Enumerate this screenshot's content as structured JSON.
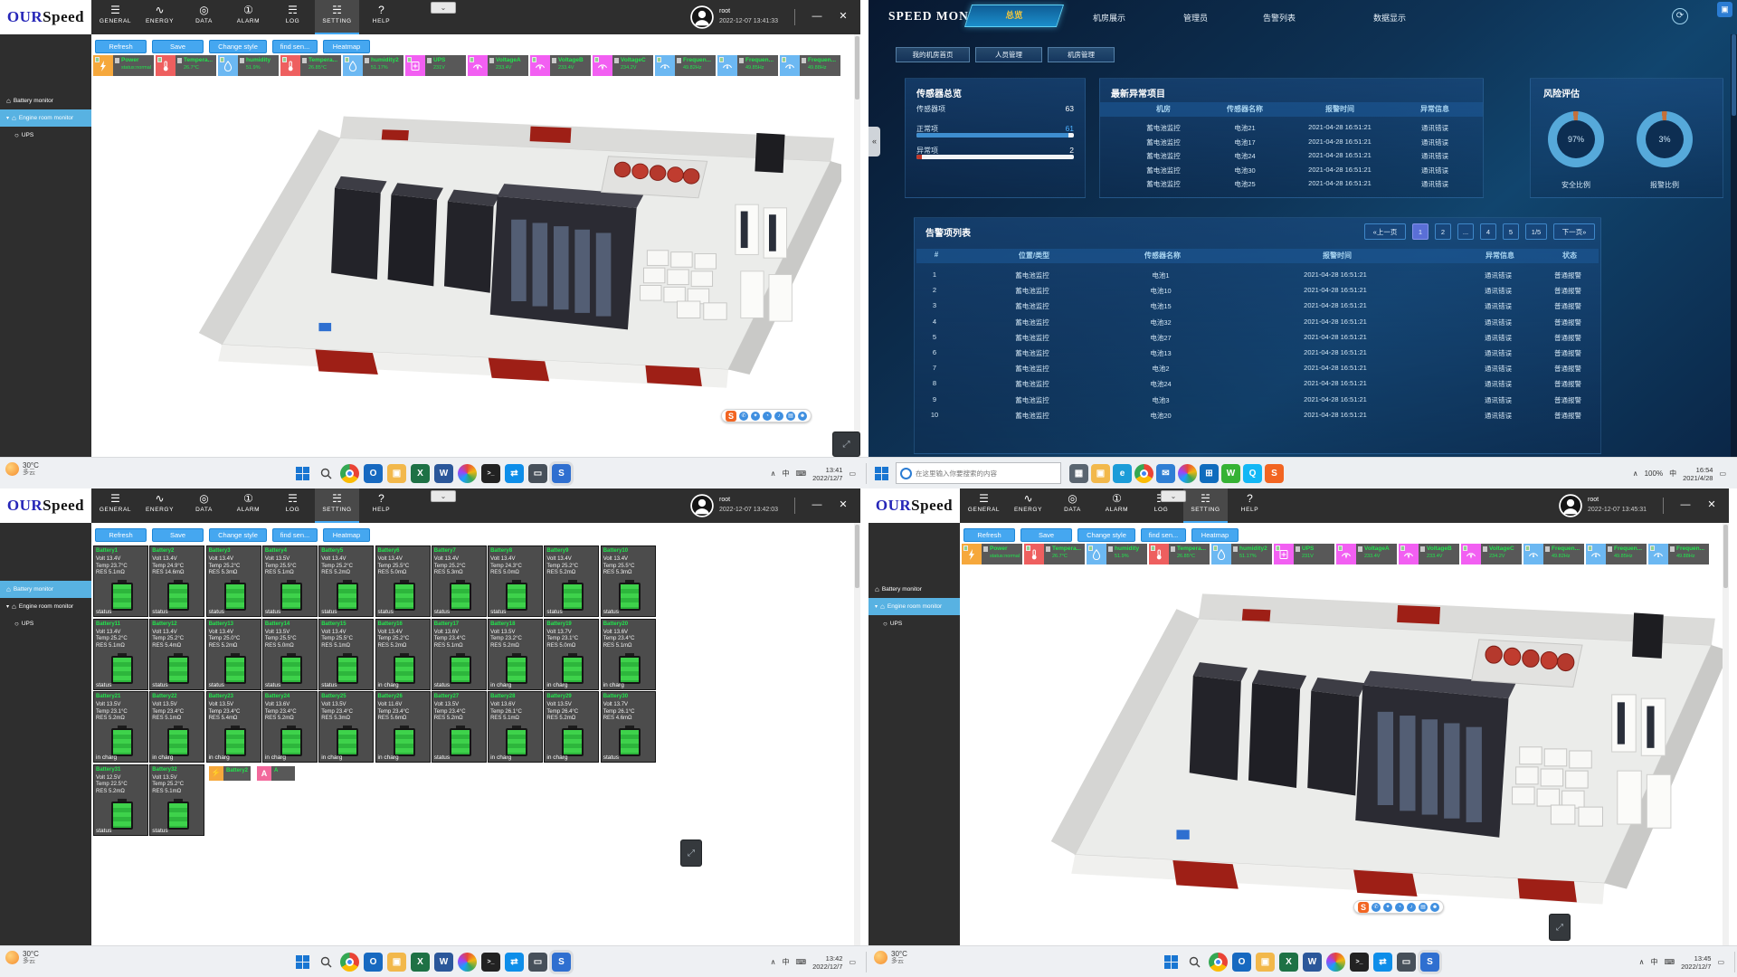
{
  "ourspeed": {
    "logo": {
      "part1": "OUR",
      "part2": "Speed"
    },
    "menu": [
      "GENERAL",
      "ENERGY",
      "DATA",
      "ALARM",
      "LOG",
      "SETTING",
      "HELP"
    ],
    "active_menu": "SETTING",
    "toolbar": [
      "Refresh",
      "Save",
      "Change style",
      "find sen...",
      "Heatmap"
    ],
    "sidebar": [
      {
        "id": "battery",
        "label": "Battery monitor"
      },
      {
        "id": "engine",
        "label": "Engine room monitor"
      },
      {
        "id": "ups",
        "label": "UPS"
      }
    ],
    "user": "root",
    "window_controls": {
      "minimize": "—",
      "close": "✕"
    },
    "mini_widget_glyph": "⌄",
    "chips": [
      {
        "label": "Power",
        "value": "status:normal",
        "color": "#f6a83c",
        "icon": "bolt-icon"
      },
      {
        "label": "Tempera...",
        "value": "26.7°C",
        "color": "#ee5f5f",
        "icon": "thermometer-icon"
      },
      {
        "label": "humidity",
        "value": "51.9%",
        "color": "#6cb8f2",
        "icon": "droplet-icon"
      },
      {
        "label": "Tempera...",
        "value": "26.85°C",
        "color": "#ee5f5f",
        "icon": "thermometer-icon"
      },
      {
        "label": "humidity2",
        "value": "51.17%",
        "color": "#6cb8f2",
        "icon": "droplet-icon"
      },
      {
        "label": "UPS",
        "value": "231V",
        "color": "#f25ff2",
        "icon": "ups-icon"
      },
      {
        "label": "VoltageA",
        "value": "233.4V",
        "color": "#f25ff2",
        "icon": "voltmeter-icon"
      },
      {
        "label": "VoltageB",
        "value": "233.4V",
        "color": "#f25ff2",
        "icon": "voltmeter-icon"
      },
      {
        "label": "VoltageC",
        "value": "234.2V",
        "color": "#f25ff2",
        "icon": "voltmeter-icon"
      },
      {
        "label": "Frequen...",
        "value": "49.82Hz",
        "color": "#6cb8f2",
        "icon": "frequency-icon"
      },
      {
        "label": "Frequen...",
        "value": "49.85Hz",
        "color": "#6cb8f2",
        "icon": "frequency-icon"
      },
      {
        "label": "Frequen...",
        "value": "49.88Hz",
        "color": "#6cb8f2",
        "icon": "frequency-icon"
      }
    ],
    "weather": {
      "temp": "30°C",
      "desc": "多云"
    },
    "tray": [
      "∧",
      "中",
      "⌨"
    ],
    "taskbar_icons": [
      "start-icon",
      "search-icon",
      "chrome-icon",
      "outlook-icon",
      "file-explorer-icon",
      "excel-icon",
      "word-icon",
      "photos-icon",
      "terminal-icon",
      "teamviewer-icon",
      "display-icon",
      "ourspeed-app-icon"
    ],
    "sogou_icons": [
      "sogou-s-icon",
      "phone-icon",
      "sparkle-icon",
      "clock-icon",
      "mic-icon",
      "keyboard-icon",
      "person-icon"
    ]
  },
  "windows": {
    "tl": {
      "timestamp": "2022-12-07 13:41:33",
      "view": "engine",
      "active_sidebar": "engine",
      "taskbar_time": "13:41",
      "taskbar_date": "2022/12/7"
    },
    "bl": {
      "timestamp": "2022-12-07 13:42:03",
      "view": "battery",
      "active_sidebar": "battery",
      "taskbar_time": "13:42",
      "taskbar_date": "2022/12/7"
    },
    "br": {
      "timestamp": "2022-12-07 13:45:31",
      "view": "engine",
      "active_sidebar": "engine",
      "taskbar_time": "13:45",
      "taskbar_date": "2022/12/7"
    }
  },
  "battery_grid": {
    "cards": [
      {
        "name": "Battery1",
        "volt": "Volt 13.4V",
        "temp": "Temp 23.7°C",
        "res": "RES 5.1mΩ",
        "status": "status"
      },
      {
        "name": "Battery2",
        "volt": "Volt 13.4V",
        "temp": "Temp 24.9°C",
        "res": "RES 14.6mΩ",
        "status": "status"
      },
      {
        "name": "Battery3",
        "volt": "Volt 13.4V",
        "temp": "Temp 25.2°C",
        "res": "RES 5.3mΩ",
        "status": "status"
      },
      {
        "name": "Battery4",
        "volt": "Volt 13.5V",
        "temp": "Temp 25.5°C",
        "res": "RES 5.1mΩ",
        "status": "status"
      },
      {
        "name": "Battery5",
        "volt": "Volt 13.4V",
        "temp": "Temp 25.2°C",
        "res": "RES 5.2mΩ",
        "status": "status"
      },
      {
        "name": "Battery6",
        "volt": "Volt 13.4V",
        "temp": "Temp 25.5°C",
        "res": "RES 5.0mΩ",
        "status": "status"
      },
      {
        "name": "Battery7",
        "volt": "Volt 13.4V",
        "temp": "Temp 25.2°C",
        "res": "RES 5.3mΩ",
        "status": "status"
      },
      {
        "name": "Battery8",
        "volt": "Volt 13.4V",
        "temp": "Temp 24.3°C",
        "res": "RES 5.0mΩ",
        "status": "status"
      },
      {
        "name": "Battery9",
        "volt": "Volt 13.4V",
        "temp": "Temp 25.2°C",
        "res": "RES 5.2mΩ",
        "status": "status"
      },
      {
        "name": "Battery10",
        "volt": "Volt 13.4V",
        "temp": "Temp 25.5°C",
        "res": "RES 5.3mΩ",
        "status": "status"
      },
      {
        "name": "Battery11",
        "volt": "Volt 13.4V",
        "temp": "Temp 25.2°C",
        "res": "RES 5.1mΩ",
        "status": "status"
      },
      {
        "name": "Battery12",
        "volt": "Volt 13.4V",
        "temp": "Temp 25.2°C",
        "res": "RES 5.4mΩ",
        "status": "status"
      },
      {
        "name": "Battery13",
        "volt": "Volt 13.4V",
        "temp": "Temp 25.0°C",
        "res": "RES 5.2mΩ",
        "status": "status"
      },
      {
        "name": "Battery14",
        "volt": "Volt 13.5V",
        "temp": "Temp 25.5°C",
        "res": "RES 5.0mΩ",
        "status": "status"
      },
      {
        "name": "Battery15",
        "volt": "Volt 13.4V",
        "temp": "Temp 25.5°C",
        "res": "RES 5.1mΩ",
        "status": "status"
      },
      {
        "name": "Battery16",
        "volt": "Volt 13.4V",
        "temp": "Temp 25.2°C",
        "res": "RES 5.2mΩ",
        "status": "in charg"
      },
      {
        "name": "Battery17",
        "volt": "Volt 13.6V",
        "temp": "Temp 23.4°C",
        "res": "RES 5.1mΩ",
        "status": "status"
      },
      {
        "name": "Battery18",
        "volt": "Volt 13.5V",
        "temp": "Temp 23.2°C",
        "res": "RES 5.2mΩ",
        "status": "in charg"
      },
      {
        "name": "Battery19",
        "volt": "Volt 13.7V",
        "temp": "Temp 23.1°C",
        "res": "RES 5.0mΩ",
        "status": "in charg"
      },
      {
        "name": "Battery20",
        "volt": "Volt 13.6V",
        "temp": "Temp 23.4°C",
        "res": "RES 5.1mΩ",
        "status": "in charg"
      },
      {
        "name": "Battery21",
        "volt": "Volt 13.5V",
        "temp": "Temp 23.1°C",
        "res": "RES 5.2mΩ",
        "status": "in charg"
      },
      {
        "name": "Battery22",
        "volt": "Volt 13.5V",
        "temp": "Temp 23.4°C",
        "res": "RES 5.1mΩ",
        "status": "in charg"
      },
      {
        "name": "Battery23",
        "volt": "Volt 13.5V",
        "temp": "Temp 23.4°C",
        "res": "RES 5.4mΩ",
        "status": "in charg"
      },
      {
        "name": "Battery24",
        "volt": "Volt 13.6V",
        "temp": "Temp 23.4°C",
        "res": "RES 5.2mΩ",
        "status": "in charg"
      },
      {
        "name": "Battery25",
        "volt": "Volt 13.5V",
        "temp": "Temp 23.4°C",
        "res": "RES 5.3mΩ",
        "status": "in charg"
      },
      {
        "name": "Battery26",
        "volt": "Volt 11.6V",
        "temp": "Temp 23.4°C",
        "res": "RES 5.6mΩ",
        "status": "in charg"
      },
      {
        "name": "Battery27",
        "volt": "Volt 13.5V",
        "temp": "Temp 23.4°C",
        "res": "RES 5.2mΩ",
        "status": "status"
      },
      {
        "name": "Battery28",
        "volt": "Volt 13.6V",
        "temp": "Temp 26.1°C",
        "res": "RES 5.1mΩ",
        "status": "in charg"
      },
      {
        "name": "Battery29",
        "volt": "Volt 13.5V",
        "temp": "Temp 26.4°C",
        "res": "RES 5.2mΩ",
        "status": "in charg"
      },
      {
        "name": "Battery30",
        "volt": "Volt 13.7V",
        "temp": "Temp 26.1°C",
        "res": "RES 4.6mΩ",
        "status": "status"
      },
      {
        "name": "Battery31",
        "volt": "Volt 12.5V",
        "temp": "Temp 22.5°C",
        "res": "RES 5.2mΩ",
        "status": "status"
      },
      {
        "name": "Battery32",
        "volt": "Volt 13.5V",
        "temp": "Temp 25.2°C",
        "res": "RES 5.1mΩ",
        "status": "status"
      }
    ],
    "extra_chips": [
      {
        "label": "Battery2",
        "glyph": "⚡",
        "color": "#f6a83c",
        "icon": "battery-chip-icon"
      },
      {
        "label": "A",
        "glyph": "A",
        "color": "#f2699c",
        "icon": "alarm-chip-icon"
      }
    ]
  },
  "dashboard": {
    "title": "SPEED MONITOR",
    "nav": [
      "总览",
      "机房展示",
      "管理员",
      "告警列表",
      "数据显示"
    ],
    "collapse_glyph": "«",
    "subnav": [
      "我的机房首页",
      "人员管理",
      "机房管理"
    ],
    "sensor_overview": {
      "title": "传感器总览",
      "rows": [
        {
          "label": "传感器项",
          "value": "63",
          "pct": 0,
          "bar": ""
        },
        {
          "label": "正常项",
          "value": "61",
          "pct": 96.8,
          "bar": "#3e8ed0",
          "value_color": "#4db1ff"
        },
        {
          "label": "异常项",
          "value": "2",
          "pct": 3.2,
          "bar": "#c0392b",
          "value_color": "#ffffff"
        }
      ]
    },
    "latest_abnormal": {
      "title": "最新异常项目",
      "headers": [
        "机房",
        "传感器名称",
        "报警时间",
        "异常信息"
      ],
      "rows": [
        [
          "蓄电池监控",
          "电池21",
          "2021-04-28 16:51:21",
          "通讯错误"
        ],
        [
          "蓄电池监控",
          "电池17",
          "2021-04-28 16:51:21",
          "通讯错误"
        ],
        [
          "蓄电池监控",
          "电池24",
          "2021-04-28 16:51:21",
          "通讯错误"
        ],
        [
          "蓄电池监控",
          "电池30",
          "2021-04-28 16:51:21",
          "通讯错误"
        ],
        [
          "蓄电池监控",
          "电池25",
          "2021-04-28 16:51:21",
          "通讯错误"
        ]
      ]
    },
    "risk": {
      "title": "风险评估",
      "donuts": [
        {
          "pct": 97,
          "pct_label": "97%",
          "label": "安全比例",
          "main": "#56a9da",
          "rest": "#c4703a"
        },
        {
          "pct": 3,
          "pct_label": "3%",
          "label": "报警比例",
          "main": "#c4703a",
          "rest": "#56a9da"
        }
      ]
    },
    "alarm_list": {
      "title": "告警项列表",
      "pagination": [
        "«上一页",
        "1",
        "2",
        "...",
        "4",
        "5",
        "1/5",
        "下一页»"
      ],
      "active_page_index": 1,
      "headers": [
        "#",
        "位置/类型",
        "传感器名称",
        "报警时间",
        "异常信息",
        "状态"
      ],
      "rows": [
        [
          "1",
          "蓄电池监控",
          "电池1",
          "2021-04-28 16:51:21",
          "通讯错误",
          "普通报警"
        ],
        [
          "2",
          "蓄电池监控",
          "电池10",
          "2021-04-28 16:51:21",
          "通讯错误",
          "普通报警"
        ],
        [
          "3",
          "蓄电池监控",
          "电池15",
          "2021-04-28 16:51:21",
          "通讯错误",
          "普通报警"
        ],
        [
          "4",
          "蓄电池监控",
          "电池32",
          "2021-04-28 16:51:21",
          "通讯错误",
          "普通报警"
        ],
        [
          "5",
          "蓄电池监控",
          "电池27",
          "2021-04-28 16:51:21",
          "通讯错误",
          "普通报警"
        ],
        [
          "6",
          "蓄电池监控",
          "电池13",
          "2021-04-28 16:51:21",
          "通讯错误",
          "普通报警"
        ],
        [
          "7",
          "蓄电池监控",
          "电池2",
          "2021-04-28 16:51:21",
          "通讯错误",
          "普通报警"
        ],
        [
          "8",
          "蓄电池监控",
          "电池24",
          "2021-04-28 16:51:21",
          "通讯错误",
          "普通报警"
        ],
        [
          "9",
          "蓄电池监控",
          "电池3",
          "2021-04-28 16:51:21",
          "通讯错误",
          "普通报警"
        ],
        [
          "10",
          "蓄电池监控",
          "电池20",
          "2021-04-28 16:51:21",
          "通讯错误",
          "普通报警"
        ]
      ]
    },
    "taskbar": {
      "search_placeholder": "在这里输入你要搜索的内容",
      "icons": [
        "task-view-icon",
        "file-explorer-icon",
        "edge-icon",
        "chrome-icon",
        "mail-icon",
        "photos-icon",
        "store-icon",
        "wechat-icon",
        "qq-icon",
        "sogou-icon"
      ],
      "battery": "100%",
      "lang": "中",
      "time": "16:54",
      "date": "2021/4/28",
      "tray_chevron": "∧"
    }
  }
}
